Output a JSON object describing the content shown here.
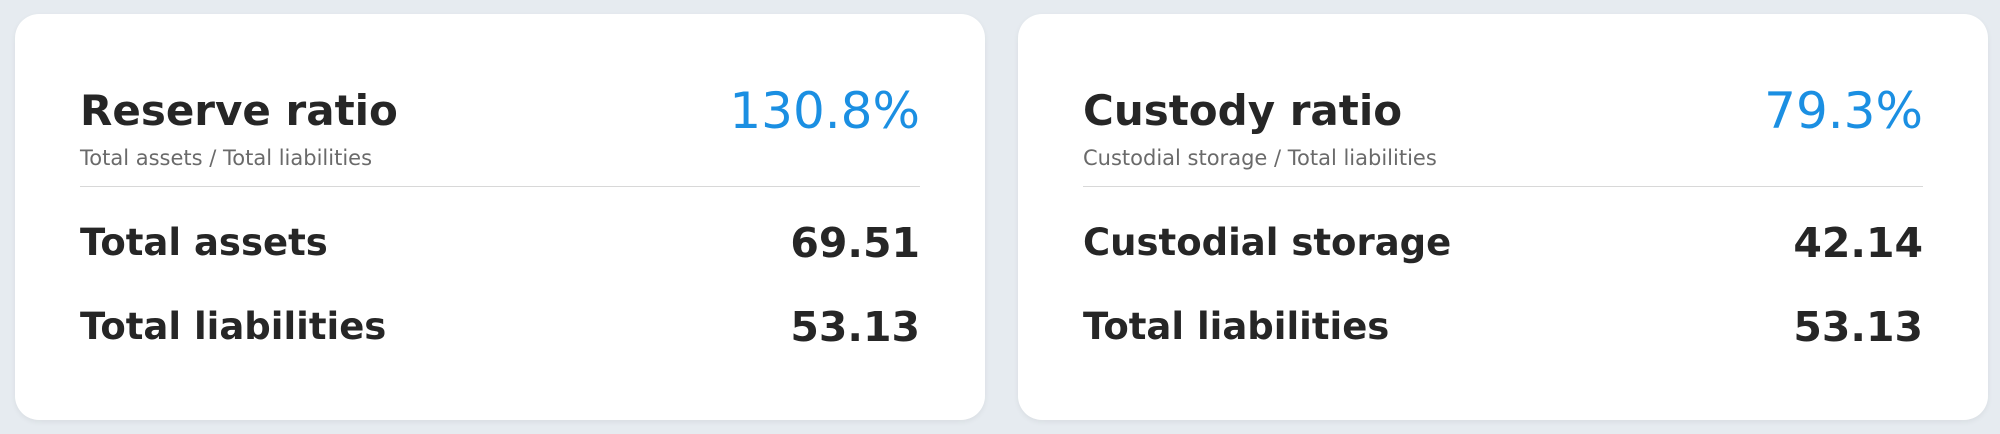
{
  "cards": [
    {
      "title": "Reserve ratio",
      "subtitle": "Total assets / Total liabilities",
      "ratio": "130.8%",
      "rows": [
        {
          "label": "Total assets",
          "value": "69.51"
        },
        {
          "label": "Total liabilities",
          "value": "53.13"
        }
      ]
    },
    {
      "title": "Custody ratio",
      "subtitle": "Custodial storage / Total liabilities",
      "ratio": "79.3%",
      "rows": [
        {
          "label": "Custodial storage",
          "value": "42.14"
        },
        {
          "label": "Total liabilities",
          "value": "53.13"
        }
      ]
    }
  ]
}
